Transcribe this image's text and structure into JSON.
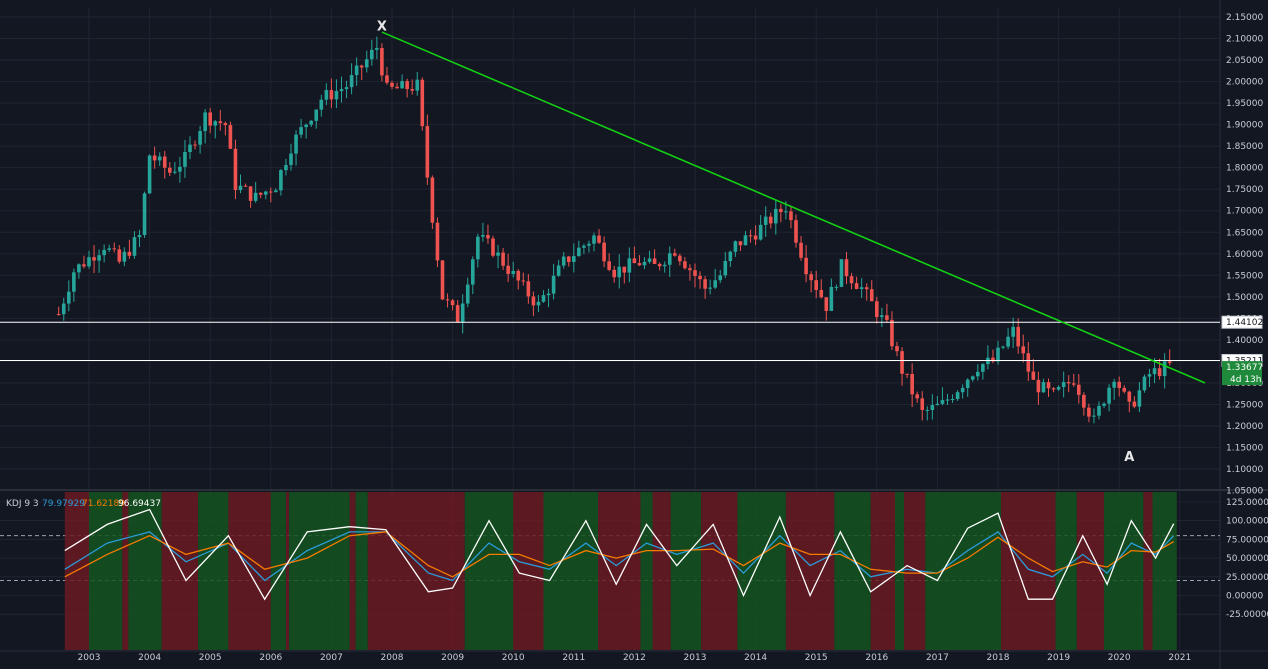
{
  "chart_data": [
    {
      "type": "candlestick",
      "interval": "monthly",
      "x_range": [
        "2002-06",
        "2021-06"
      ],
      "ylim": [
        1.05,
        2.16
      ],
      "x_ticks": [
        "2003",
        "2004",
        "2005",
        "2006",
        "2007",
        "2008",
        "2009",
        "2010",
        "2011",
        "2012",
        "2013",
        "2014",
        "2015",
        "2016",
        "2017",
        "2018",
        "2019",
        "2020",
        "2021"
      ],
      "y_ticks": [
        "2.15000",
        "2.10000",
        "2.05000",
        "2.00000",
        "1.95000",
        "1.90000",
        "1.85000",
        "1.80000",
        "1.75000",
        "1.70000",
        "1.65000",
        "1.60000",
        "1.55000",
        "1.50000",
        "1.45000",
        "1.40000",
        "1.35000",
        "1.30000",
        "1.25000",
        "1.20000",
        "1.15000",
        "1.10000",
        "1.05000"
      ],
      "close_path": [
        [
          "2002-07",
          1.46
        ],
        [
          "2002-10",
          1.56
        ],
        [
          "2003-04",
          1.62
        ],
        [
          "2003-07",
          1.58
        ],
        [
          "2003-11",
          1.64
        ],
        [
          "2004-01",
          1.83
        ],
        [
          "2004-05",
          1.79
        ],
        [
          "2004-08",
          1.82
        ],
        [
          "2004-12",
          1.92
        ],
        [
          "2005-04",
          1.9
        ],
        [
          "2005-06",
          1.76
        ],
        [
          "2005-10",
          1.73
        ],
        [
          "2006-02",
          1.76
        ],
        [
          "2006-05",
          1.85
        ],
        [
          "2006-11",
          1.96
        ],
        [
          "2007-04",
          1.99
        ],
        [
          "2007-10",
          2.08
        ],
        [
          "2007-12",
          1.98
        ],
        [
          "2008-06",
          1.99
        ],
        [
          "2008-08",
          1.78
        ],
        [
          "2008-11",
          1.5
        ],
        [
          "2009-02",
          1.45
        ],
        [
          "2009-06",
          1.64
        ],
        [
          "2009-09",
          1.61
        ],
        [
          "2010-03",
          1.52
        ],
        [
          "2010-06",
          1.48
        ],
        [
          "2010-11",
          1.58
        ],
        [
          "2011-05",
          1.64
        ],
        [
          "2011-09",
          1.56
        ],
        [
          "2012-02",
          1.58
        ],
        [
          "2012-05",
          1.57
        ],
        [
          "2012-09",
          1.61
        ],
        [
          "2013-03",
          1.52
        ],
        [
          "2013-06",
          1.55
        ],
        [
          "2013-09",
          1.62
        ],
        [
          "2014-01",
          1.65
        ],
        [
          "2014-07",
          1.71
        ],
        [
          "2014-11",
          1.57
        ],
        [
          "2015-03",
          1.48
        ],
        [
          "2015-06",
          1.57
        ],
        [
          "2015-10",
          1.52
        ],
        [
          "2016-03",
          1.43
        ],
        [
          "2016-06",
          1.33
        ],
        [
          "2016-10",
          1.23
        ],
        [
          "2017-02",
          1.25
        ],
        [
          "2017-06",
          1.3
        ],
        [
          "2017-09",
          1.34
        ],
        [
          "2017-12",
          1.35
        ],
        [
          "2018-04",
          1.42
        ],
        [
          "2018-08",
          1.3
        ],
        [
          "2018-12",
          1.27
        ],
        [
          "2019-04",
          1.31
        ],
        [
          "2019-08",
          1.21
        ],
        [
          "2019-12",
          1.32
        ],
        [
          "2020-03",
          1.24
        ],
        [
          "2020-07",
          1.32
        ],
        [
          "2020-11",
          1.34
        ]
      ],
      "trendline": {
        "from": [
          "2007-11",
          2.115
        ],
        "to": [
          "2021-06",
          1.3
        ],
        "color": "#12d012"
      },
      "horizontal_lines": [
        {
          "value": 1.44102,
          "label": "1.44102",
          "color": "#ffffff"
        },
        {
          "value": 1.35211,
          "label": "1.35211",
          "color": "#ffffff"
        }
      ],
      "price_label": {
        "value": 1.33677,
        "label": "1.33677",
        "countdown": "4d 13h",
        "color": "#1f8a3b"
      },
      "annotations": [
        {
          "text": "X",
          "x": "2007-11",
          "y": 2.13
        },
        {
          "text": "A",
          "x": "2020-03",
          "y": 1.13
        }
      ],
      "colors": {
        "up": "#26a69a",
        "down": "#ef5350",
        "background": "#131722"
      }
    },
    {
      "type": "line",
      "indicator": "KDJ",
      "params": "9 3",
      "header_values": {
        "k": "79.97929",
        "d": "71.62189",
        "j": "96.69437"
      },
      "ylim": [
        -30,
        127
      ],
      "y_ticks": [
        "125.00000",
        "100.00000",
        "75.00000",
        "50.00000",
        "25.00000",
        "0.00000",
        "-25.00000"
      ],
      "reference_levels": [
        80,
        20
      ],
      "series": [
        {
          "name": "K",
          "color": "#2b9bd8",
          "values": [
            [
              2002.6,
              35
            ],
            [
              2003.3,
              70
            ],
            [
              2004.0,
              85
            ],
            [
              2004.6,
              45
            ],
            [
              2005.3,
              70
            ],
            [
              2005.9,
              20
            ],
            [
              2006.6,
              60
            ],
            [
              2007.3,
              85
            ],
            [
              2007.9,
              85
            ],
            [
              2008.6,
              30
            ],
            [
              2009.0,
              20
            ],
            [
              2009.6,
              70
            ],
            [
              2010.1,
              45
            ],
            [
              2010.6,
              35
            ],
            [
              2011.2,
              70
            ],
            [
              2011.7,
              40
            ],
            [
              2012.2,
              70
            ],
            [
              2012.7,
              55
            ],
            [
              2013.3,
              70
            ],
            [
              2013.8,
              30
            ],
            [
              2014.4,
              80
            ],
            [
              2014.9,
              40
            ],
            [
              2015.4,
              60
            ],
            [
              2015.9,
              25
            ],
            [
              2016.5,
              35
            ],
            [
              2017.0,
              30
            ],
            [
              2017.5,
              60
            ],
            [
              2018.0,
              85
            ],
            [
              2018.5,
              35
            ],
            [
              2018.9,
              25
            ],
            [
              2019.4,
              55
            ],
            [
              2019.8,
              30
            ],
            [
              2020.2,
              70
            ],
            [
              2020.6,
              55
            ],
            [
              2020.9,
              80
            ]
          ]
        },
        {
          "name": "D",
          "color": "#f57c00",
          "values": [
            [
              2002.6,
              25
            ],
            [
              2003.3,
              55
            ],
            [
              2004.0,
              80
            ],
            [
              2004.6,
              55
            ],
            [
              2005.3,
              70
            ],
            [
              2005.9,
              35
            ],
            [
              2006.6,
              50
            ],
            [
              2007.3,
              80
            ],
            [
              2007.9,
              85
            ],
            [
              2008.6,
              40
            ],
            [
              2009.0,
              25
            ],
            [
              2009.6,
              55
            ],
            [
              2010.1,
              55
            ],
            [
              2010.6,
              40
            ],
            [
              2011.2,
              60
            ],
            [
              2011.7,
              50
            ],
            [
              2012.2,
              60
            ],
            [
              2012.7,
              60
            ],
            [
              2013.3,
              62
            ],
            [
              2013.8,
              40
            ],
            [
              2014.4,
              70
            ],
            [
              2014.9,
              55
            ],
            [
              2015.4,
              55
            ],
            [
              2015.9,
              35
            ],
            [
              2016.5,
              30
            ],
            [
              2017.0,
              30
            ],
            [
              2017.5,
              50
            ],
            [
              2018.0,
              78
            ],
            [
              2018.5,
              50
            ],
            [
              2018.9,
              32
            ],
            [
              2019.4,
              45
            ],
            [
              2019.8,
              38
            ],
            [
              2020.2,
              60
            ],
            [
              2020.6,
              58
            ],
            [
              2020.9,
              72
            ]
          ]
        },
        {
          "name": "J",
          "color": "#ffffff",
          "values": [
            [
              2002.6,
              60
            ],
            [
              2003.3,
              95
            ],
            [
              2004.0,
              115
            ],
            [
              2004.6,
              20
            ],
            [
              2005.3,
              80
            ],
            [
              2005.9,
              -5
            ],
            [
              2006.6,
              85
            ],
            [
              2007.3,
              92
            ],
            [
              2007.9,
              88
            ],
            [
              2008.6,
              5
            ],
            [
              2009.0,
              10
            ],
            [
              2009.6,
              100
            ],
            [
              2010.1,
              30
            ],
            [
              2010.6,
              20
            ],
            [
              2011.2,
              100
            ],
            [
              2011.7,
              15
            ],
            [
              2012.2,
              95
            ],
            [
              2012.7,
              40
            ],
            [
              2013.3,
              95
            ],
            [
              2013.8,
              0
            ],
            [
              2014.4,
              105
            ],
            [
              2014.9,
              0
            ],
            [
              2015.4,
              85
            ],
            [
              2015.9,
              5
            ],
            [
              2016.5,
              40
            ],
            [
              2017.0,
              20
            ],
            [
              2017.5,
              90
            ],
            [
              2018.0,
              110
            ],
            [
              2018.5,
              -5
            ],
            [
              2018.9,
              -5
            ],
            [
              2019.4,
              80
            ],
            [
              2019.8,
              15
            ],
            [
              2020.2,
              100
            ],
            [
              2020.6,
              50
            ],
            [
              2020.9,
              96
            ]
          ]
        }
      ],
      "background_bands": [
        {
          "from": 2002.6,
          "to": 2003.0,
          "color": "red"
        },
        {
          "from": 2003.0,
          "to": 2003.55,
          "color": "green"
        },
        {
          "from": 2003.55,
          "to": 2003.65,
          "color": "red"
        },
        {
          "from": 2003.65,
          "to": 2004.2,
          "color": "green"
        },
        {
          "from": 2004.2,
          "to": 2004.8,
          "color": "red"
        },
        {
          "from": 2004.8,
          "to": 2005.3,
          "color": "green"
        },
        {
          "from": 2005.3,
          "to": 2006.0,
          "color": "red"
        },
        {
          "from": 2006.0,
          "to": 2006.25,
          "color": "green"
        },
        {
          "from": 2006.25,
          "to": 2006.3,
          "color": "red"
        },
        {
          "from": 2006.3,
          "to": 2007.3,
          "color": "green"
        },
        {
          "from": 2007.3,
          "to": 2007.4,
          "color": "red"
        },
        {
          "from": 2007.4,
          "to": 2007.6,
          "color": "green"
        },
        {
          "from": 2007.6,
          "to": 2007.85,
          "color": "red"
        },
        {
          "from": 2007.85,
          "to": 2009.2,
          "color": "red"
        },
        {
          "from": 2009.2,
          "to": 2010.0,
          "color": "green"
        },
        {
          "from": 2010.0,
          "to": 2010.5,
          "color": "red"
        },
        {
          "from": 2010.5,
          "to": 2011.4,
          "color": "green"
        },
        {
          "from": 2011.4,
          "to": 2012.1,
          "color": "red"
        },
        {
          "from": 2012.1,
          "to": 2012.3,
          "color": "green"
        },
        {
          "from": 2012.3,
          "to": 2012.6,
          "color": "red"
        },
        {
          "from": 2012.6,
          "to": 2013.1,
          "color": "green"
        },
        {
          "from": 2013.1,
          "to": 2013.7,
          "color": "red"
        },
        {
          "from": 2013.7,
          "to": 2014.5,
          "color": "green"
        },
        {
          "from": 2014.5,
          "to": 2015.3,
          "color": "red"
        },
        {
          "from": 2015.3,
          "to": 2015.9,
          "color": "green"
        },
        {
          "from": 2015.9,
          "to": 2016.3,
          "color": "red"
        },
        {
          "from": 2016.3,
          "to": 2016.45,
          "color": "green"
        },
        {
          "from": 2016.45,
          "to": 2016.8,
          "color": "red"
        },
        {
          "from": 2016.8,
          "to": 2018.05,
          "color": "green"
        },
        {
          "from": 2018.05,
          "to": 2018.95,
          "color": "red"
        },
        {
          "from": 2018.95,
          "to": 2019.3,
          "color": "green"
        },
        {
          "from": 2019.3,
          "to": 2019.75,
          "color": "red"
        },
        {
          "from": 2019.75,
          "to": 2020.4,
          "color": "green"
        },
        {
          "from": 2020.4,
          "to": 2020.55,
          "color": "red"
        },
        {
          "from": 2020.55,
          "to": 2020.95,
          "color": "green"
        }
      ]
    }
  ]
}
